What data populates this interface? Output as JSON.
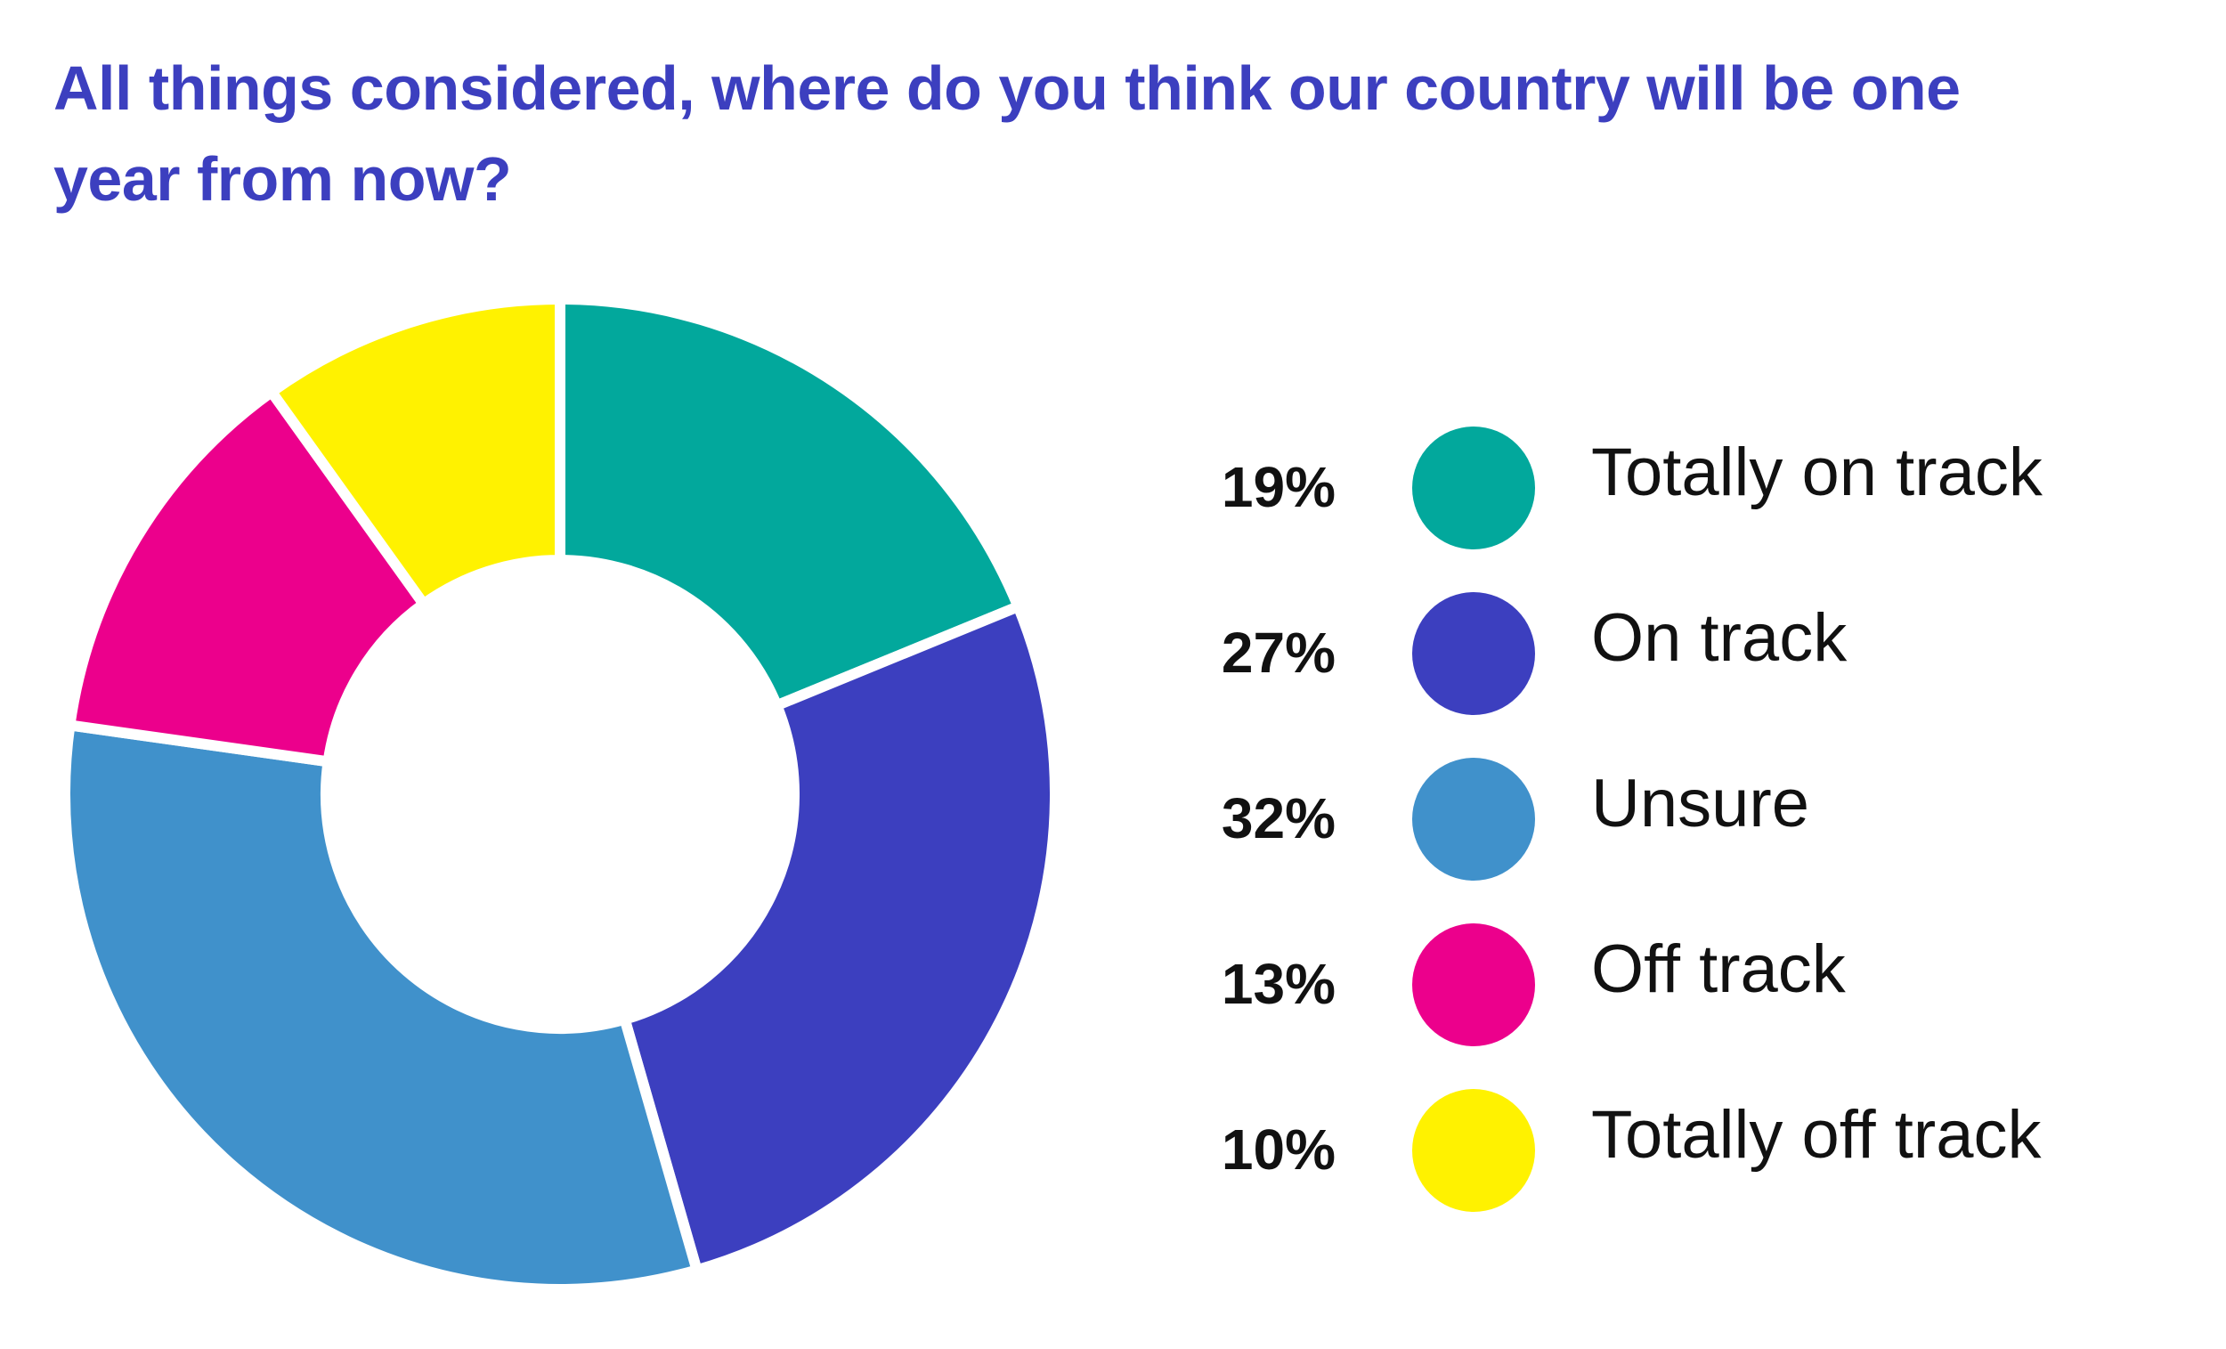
{
  "chart_data": {
    "type": "pie",
    "title": "All things considered, where do you think our country will be one year from now?",
    "categories": [
      "Totally on track",
      "On track",
      "Unsure",
      "Off track",
      "Totally off track"
    ],
    "values": [
      19,
      27,
      32,
      13,
      10
    ],
    "value_labels": [
      "19%",
      "27%",
      "32%",
      "13%",
      "10%"
    ],
    "colors": [
      "#02a89c",
      "#3c3fbf",
      "#4091cb",
      "#ec008c",
      "#fff200"
    ]
  }
}
